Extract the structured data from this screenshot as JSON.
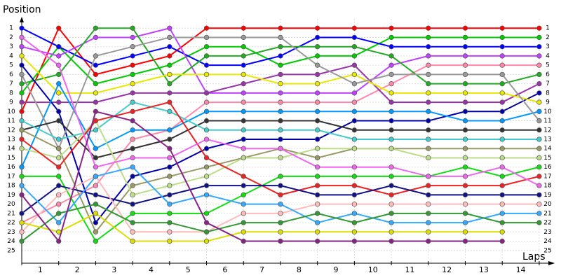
{
  "chart_data": {
    "type": "line",
    "ylabel": "Position",
    "xlabel": "Laps",
    "x": [
      0,
      1,
      2,
      3,
      4,
      5,
      6,
      7,
      8,
      9,
      10,
      11,
      12,
      13,
      14
    ],
    "xlim": [
      0,
      14.4
    ],
    "ylim": [
      26,
      0
    ],
    "xticks": [
      {
        "value": 0.5,
        "label": "1"
      },
      {
        "value": 1.5,
        "label": "2"
      },
      {
        "value": 2.5,
        "label": "3"
      },
      {
        "value": 3.5,
        "label": "4"
      },
      {
        "value": 4.5,
        "label": "5"
      },
      {
        "value": 5.5,
        "label": "6"
      },
      {
        "value": 6.5,
        "label": "7"
      },
      {
        "value": 7.5,
        "label": "8"
      },
      {
        "value": 8.5,
        "label": "9"
      },
      {
        "value": 9.5,
        "label": "10"
      },
      {
        "value": 10.5,
        "label": "11"
      },
      {
        "value": 11.5,
        "label": "12"
      },
      {
        "value": 12.5,
        "label": "13"
      },
      {
        "value": 13.5,
        "label": "14"
      }
    ],
    "yticks": [
      1,
      2,
      3,
      4,
      5,
      6,
      7,
      8,
      9,
      10,
      11,
      12,
      13,
      14,
      15,
      16,
      17,
      18,
      19,
      20,
      21,
      22,
      23,
      24,
      25
    ],
    "grid": true,
    "series": [
      {
        "color": "#ff0000",
        "values": [
          10,
          1,
          6,
          5,
          4,
          1,
          1,
          1,
          1,
          1,
          1,
          1,
          1,
          1,
          1
        ]
      },
      {
        "color": "#00cc00",
        "values": [
          8,
          3,
          7,
          6,
          5,
          3,
          3,
          5,
          4,
          4,
          2,
          2,
          2,
          2,
          2
        ]
      },
      {
        "color": "#0000ff",
        "values": [
          1,
          3,
          5,
          4,
          3,
          5,
          5,
          4,
          2,
          2,
          3,
          3,
          3,
          3,
          3
        ]
      },
      {
        "color": "#c040ff",
        "values": [
          3,
          4,
          2,
          2,
          1,
          8,
          8,
          8,
          8,
          8,
          5,
          4,
          4,
          4,
          4
        ]
      },
      {
        "color": "#ff88aa",
        "values": [
          22,
          20,
          18,
          13,
          12,
          9,
          9,
          9,
          9,
          9,
          7,
          5,
          5,
          5,
          5
        ]
      },
      {
        "color": "#22aa22",
        "values": [
          7,
          6,
          1,
          1,
          7,
          4,
          4,
          3,
          3,
          3,
          4,
          7,
          7,
          7,
          6
        ]
      },
      {
        "color": "#9933aa",
        "values": [
          9,
          9,
          9,
          8,
          8,
          8,
          7,
          6,
          6,
          5,
          9,
          9,
          9,
          9,
          7
        ]
      },
      {
        "color": "#0000aa",
        "values": [
          5,
          10,
          22,
          17,
          16,
          14,
          13,
          13,
          13,
          11,
          11,
          11,
          10,
          10,
          8
        ]
      },
      {
        "color": "#e8e800",
        "values": [
          4,
          8,
          8,
          7,
          6,
          6,
          6,
          7,
          7,
          6,
          8,
          8,
          8,
          8,
          9
        ]
      },
      {
        "color": "#0099ff",
        "values": [
          16,
          7,
          14,
          12,
          12,
          10,
          10,
          10,
          10,
          10,
          10,
          10,
          11,
          11,
          10
        ]
      },
      {
        "color": "#999999",
        "values": [
          6,
          14,
          4,
          3,
          2,
          2,
          2,
          2,
          5,
          7,
          6,
          6,
          6,
          6,
          11
        ]
      },
      {
        "color": "#333333",
        "values": [
          12,
          11,
          15,
          14,
          13,
          11,
          11,
          11,
          11,
          12,
          12,
          12,
          12,
          12,
          12
        ]
      },
      {
        "color": "#44cccc",
        "values": [
          11,
          13,
          12,
          9,
          10,
          12,
          12,
          12,
          12,
          13,
          13,
          13,
          13,
          13,
          13
        ]
      },
      {
        "color": "#999966",
        "values": [
          12,
          14,
          23,
          18,
          17,
          16,
          15,
          14,
          15,
          14,
          14,
          14,
          14,
          14,
          14
        ]
      },
      {
        "color": "#bbdd88",
        "values": [
          14,
          15,
          11,
          19,
          18,
          17,
          15,
          15,
          14,
          14,
          14,
          15,
          15,
          15,
          15
        ]
      },
      {
        "color": "#11dd11",
        "values": [
          17,
          17,
          24,
          21,
          21,
          21,
          19,
          17,
          17,
          17,
          17,
          17,
          16,
          17,
          16
        ]
      },
      {
        "color": "#ee2222",
        "values": [
          13,
          16,
          11,
          10,
          9,
          15,
          17,
          19,
          18,
          18,
          19,
          18,
          18,
          18,
          17
        ]
      },
      {
        "color": "#ee66ee",
        "values": [
          2,
          5,
          16,
          15,
          15,
          13,
          14,
          14,
          16,
          16,
          16,
          17,
          17,
          16,
          18
        ]
      },
      {
        "color": "#111188",
        "values": [
          21,
          18,
          19,
          20,
          19,
          18,
          18,
          18,
          19,
          19,
          18,
          19,
          19,
          19,
          19
        ]
      },
      {
        "color": "#ffbbbb",
        "values": [
          23,
          19,
          17,
          23,
          23,
          23,
          21,
          21,
          20,
          20,
          20,
          20,
          20,
          20,
          20
        ]
      },
      {
        "color": "#33aaff",
        "values": [
          18,
          22,
          17,
          16,
          20,
          19,
          20,
          20,
          22,
          21,
          22,
          22,
          22,
          21,
          21
        ]
      },
      {
        "color": "#339933",
        "values": [
          24,
          21,
          20,
          22,
          22,
          23,
          22,
          22,
          21,
          22,
          21,
          21,
          21,
          22,
          22
        ]
      },
      {
        "color": "#dddd00",
        "values": [
          22,
          23,
          21,
          24,
          24,
          24,
          23,
          23,
          23,
          23,
          23,
          23,
          23,
          23,
          null
        ]
      },
      {
        "color": "#882288",
        "values": [
          19,
          24,
          10,
          11,
          14,
          22,
          24,
          24,
          24,
          24,
          24,
          24,
          24,
          24,
          null
        ]
      }
    ]
  }
}
